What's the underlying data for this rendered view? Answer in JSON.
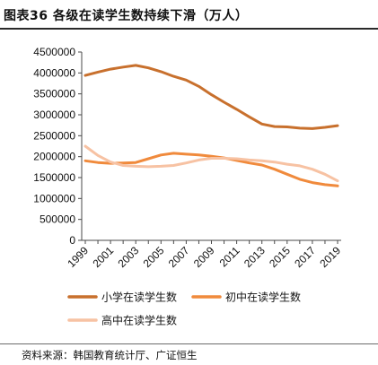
{
  "header": {
    "title": "图表36 各级在读学生数持续下滑（万人）"
  },
  "footer": {
    "source": "资料来源：韩国教育统计厅、广证恒生"
  },
  "chart_data": {
    "type": "line",
    "title": "图表36 各级在读学生数持续下滑（万人）",
    "xlabel": "",
    "ylabel": "",
    "x": [
      1999,
      2000,
      2001,
      2002,
      2003,
      2004,
      2005,
      2006,
      2007,
      2008,
      2009,
      2010,
      2011,
      2012,
      2013,
      2014,
      2015,
      2016,
      2017,
      2018,
      2019
    ],
    "x_tick_labels": [
      "1999",
      "2001",
      "2003",
      "2005",
      "2007",
      "2009",
      "2011",
      "2013",
      "2015",
      "2017",
      "2019"
    ],
    "y_tick_labels": [
      "0",
      "500000",
      "1000000",
      "1500000",
      "2000000",
      "2500000",
      "3000000",
      "3500000",
      "4000000",
      "4500000"
    ],
    "ylim": [
      0,
      4500000
    ],
    "grid": false,
    "legend_position": "bottom",
    "series": [
      {
        "name": "小学在读学生数",
        "color": "#C8702D",
        "values": [
          3940000,
          4020000,
          4090000,
          4140000,
          4180000,
          4120000,
          4030000,
          3920000,
          3830000,
          3680000,
          3480000,
          3300000,
          3130000,
          2950000,
          2780000,
          2720000,
          2710000,
          2680000,
          2670000,
          2700000,
          2740000
        ]
      },
      {
        "name": "初中在读学生数",
        "color": "#F08A3C",
        "values": [
          1900000,
          1860000,
          1840000,
          1850000,
          1860000,
          1950000,
          2040000,
          2080000,
          2060000,
          2040000,
          2010000,
          1970000,
          1910000,
          1850000,
          1800000,
          1700000,
          1580000,
          1460000,
          1380000,
          1330000,
          1300000
        ]
      },
      {
        "name": "高中在读学生数",
        "color": "#F7C2A3",
        "values": [
          2250000,
          2030000,
          1870000,
          1790000,
          1770000,
          1760000,
          1770000,
          1790000,
          1850000,
          1920000,
          1960000,
          1960000,
          1950000,
          1920000,
          1900000,
          1870000,
          1820000,
          1780000,
          1700000,
          1580000,
          1420000
        ]
      }
    ]
  }
}
